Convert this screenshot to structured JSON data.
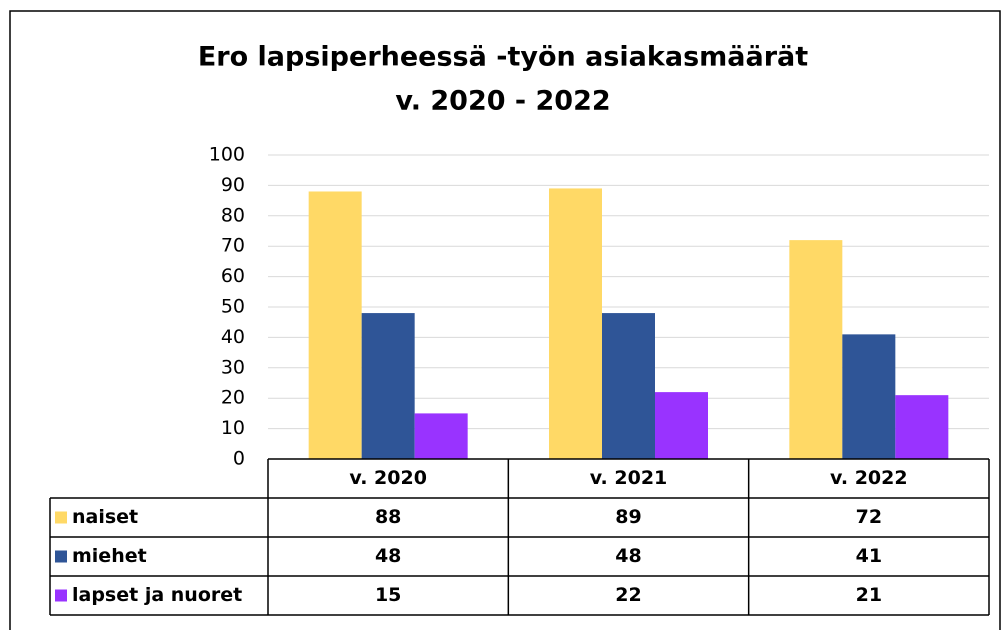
{
  "chart_data": {
    "type": "bar",
    "title": [
      "Ero lapsiperheessä -työn asiakasmäärät",
      "v. 2020 - 2022"
    ],
    "categories": [
      "v. 2020",
      "v. 2021",
      "v. 2022"
    ],
    "series": [
      {
        "name": "naiset",
        "color": "#ffd966",
        "values": [
          88,
          89,
          72
        ]
      },
      {
        "name": "miehet",
        "color": "#2f5597",
        "values": [
          48,
          48,
          41
        ]
      },
      {
        "name": "lapset ja nuoret",
        "color": "#9933ff",
        "values": [
          15,
          22,
          21
        ]
      }
    ],
    "ylim": [
      0,
      100
    ],
    "yticks": [
      0,
      10,
      20,
      30,
      40,
      50,
      60,
      70,
      80,
      90,
      100
    ],
    "grid": true
  }
}
